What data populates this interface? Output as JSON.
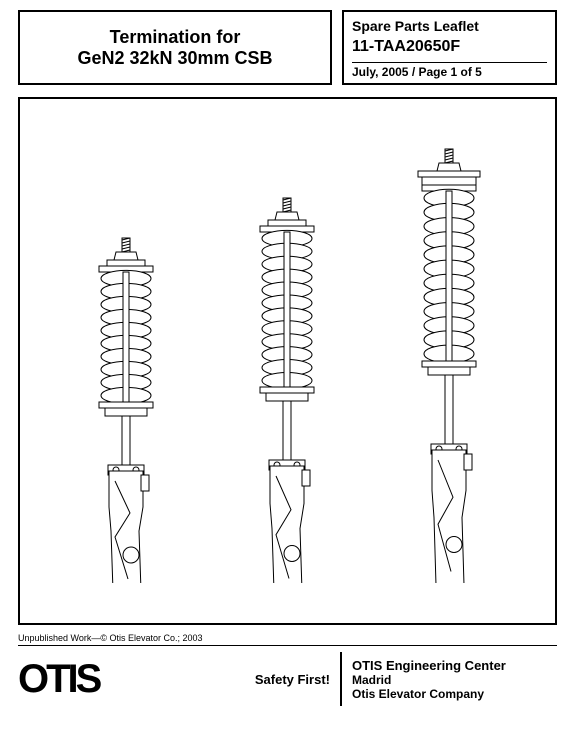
{
  "title": {
    "line1": "Termination for",
    "line2": "GeN2 32kN 30mm CSB"
  },
  "info": {
    "leaflet": "Spare Parts Leaflet",
    "partno": "11-TAA20650F",
    "date_page": "July, 2005 / Page 1 of 5"
  },
  "figure": {
    "type": "infographic",
    "description": "Three line-drawing elevator termination assemblies (spring + shaft + wedge housing), increasing in overall length left to right",
    "stroke_color": "#000000",
    "fill_color": "#ffffff",
    "stroke_width": 1,
    "items": [
      {
        "spring_height": 130,
        "spring_coils": 10,
        "shaft_height": 55,
        "housing_height": 120,
        "cap_style": "nut"
      },
      {
        "spring_height": 155,
        "spring_coils": 12,
        "shaft_height": 65,
        "housing_height": 125,
        "cap_style": "nut"
      },
      {
        "spring_height": 170,
        "spring_coils": 12,
        "shaft_height": 75,
        "housing_height": 135,
        "cap_style": "flange"
      }
    ]
  },
  "copyright": "Unpublished Work—© Otis Elevator Co.; 2003",
  "footer": {
    "logo": "OTIS",
    "safety": "Safety First!",
    "eng_center": "OTIS Engineering Center",
    "location": "Madrid",
    "company": "Otis Elevator Company"
  }
}
